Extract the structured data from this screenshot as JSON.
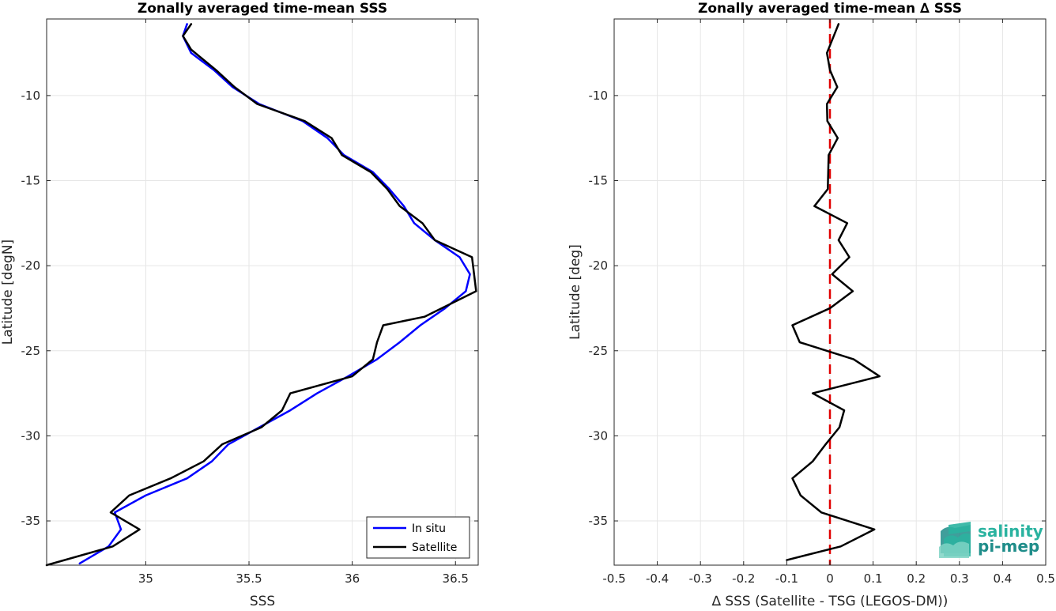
{
  "figure": {
    "background": "#ffffff",
    "grid_color": "#e6e6e6",
    "axis_color": "#262626"
  },
  "logo": {
    "line1": "salinity",
    "line2": "pi-mep",
    "color_primary": "#2ab3a0",
    "color_secondary": "#1f8d8a"
  },
  "chart_data": [
    {
      "type": "line",
      "title": "Zonally averaged time-mean SSS",
      "xlabel": "SSS",
      "ylabel": "Latitude [degN]",
      "xlim": [
        34.52,
        36.61
      ],
      "ylim": [
        -37.6,
        -5.5
      ],
      "xticks": [
        35,
        35.5,
        36,
        36.5
      ],
      "xtick_labels": [
        "35",
        "35.5",
        "36",
        "36.5"
      ],
      "yticks": [
        -10,
        -15,
        -20,
        -25,
        -30,
        -35
      ],
      "ytick_labels": [
        "-10",
        "-15",
        "-20",
        "-25",
        "-30",
        "-35"
      ],
      "grid": true,
      "legend_position": "bottom-right",
      "series": [
        {
          "name": "In situ",
          "color": "#0000ff",
          "points": [
            [
              35.2,
              -5.8
            ],
            [
              35.18,
              -6.5
            ],
            [
              35.22,
              -7.5
            ],
            [
              35.33,
              -8.5
            ],
            [
              35.42,
              -9.5
            ],
            [
              35.55,
              -10.5
            ],
            [
              35.76,
              -11.5
            ],
            [
              35.88,
              -12.5
            ],
            [
              35.96,
              -13.5
            ],
            [
              36.1,
              -14.5
            ],
            [
              36.18,
              -15.5
            ],
            [
              36.25,
              -16.5
            ],
            [
              36.3,
              -17.5
            ],
            [
              36.4,
              -18.5
            ],
            [
              36.52,
              -19.5
            ],
            [
              36.57,
              -20.5
            ],
            [
              36.55,
              -21.5
            ],
            [
              36.45,
              -22.5
            ],
            [
              36.33,
              -23.5
            ],
            [
              36.23,
              -24.5
            ],
            [
              36.12,
              -25.5
            ],
            [
              35.98,
              -26.5
            ],
            [
              35.83,
              -27.5
            ],
            [
              35.7,
              -28.5
            ],
            [
              35.55,
              -29.5
            ],
            [
              35.4,
              -30.5
            ],
            [
              35.32,
              -31.5
            ],
            [
              35.2,
              -32.5
            ],
            [
              35.0,
              -33.5
            ],
            [
              34.85,
              -34.5
            ],
            [
              34.88,
              -35.5
            ],
            [
              34.82,
              -36.5
            ],
            [
              34.68,
              -37.5
            ]
          ]
        },
        {
          "name": "Satellite",
          "color": "#000000",
          "points": [
            [
              35.22,
              -5.8
            ],
            [
              35.18,
              -6.5
            ],
            [
              35.22,
              -7.3
            ],
            [
              35.34,
              -8.5
            ],
            [
              35.43,
              -9.5
            ],
            [
              35.54,
              -10.5
            ],
            [
              35.77,
              -11.5
            ],
            [
              35.9,
              -12.5
            ],
            [
              35.95,
              -13.5
            ],
            [
              36.09,
              -14.5
            ],
            [
              36.17,
              -15.5
            ],
            [
              36.23,
              -16.5
            ],
            [
              36.34,
              -17.5
            ],
            [
              36.4,
              -18.5
            ],
            [
              36.58,
              -19.5
            ],
            [
              36.6,
              -21.5
            ],
            [
              36.35,
              -23.0
            ],
            [
              36.15,
              -23.5
            ],
            [
              36.12,
              -24.5
            ],
            [
              36.1,
              -25.5
            ],
            [
              36.0,
              -26.5
            ],
            [
              35.7,
              -27.5
            ],
            [
              35.66,
              -28.5
            ],
            [
              35.56,
              -29.5
            ],
            [
              35.37,
              -30.5
            ],
            [
              35.28,
              -31.5
            ],
            [
              35.12,
              -32.5
            ],
            [
              34.92,
              -33.5
            ],
            [
              34.83,
              -34.5
            ],
            [
              34.97,
              -35.5
            ],
            [
              34.84,
              -36.5
            ],
            [
              34.52,
              -37.6
            ]
          ]
        }
      ]
    },
    {
      "type": "line",
      "title": "Zonally averaged time-mean ∆ SSS",
      "xlabel": "∆ SSS (Satellite - TSG (LEGOS-DM))",
      "ylabel": "Latitude [deg]",
      "xlim": [
        -0.5,
        0.5
      ],
      "ylim": [
        -37.6,
        -5.5
      ],
      "xticks": [
        -0.5,
        -0.4,
        -0.3,
        -0.2,
        -0.1,
        0,
        0.1,
        0.2,
        0.3,
        0.4,
        0.5
      ],
      "xtick_labels": [
        "-0.5",
        "-0.4",
        "-0.3",
        "-0.2",
        "-0.1",
        "0",
        "0.1",
        "0.2",
        "0.3",
        "0.4",
        "0.5"
      ],
      "yticks": [
        -10,
        -15,
        -20,
        -25,
        -30,
        -35
      ],
      "ytick_labels": [
        "-10",
        "-15",
        "-20",
        "-25",
        "-30",
        "-35"
      ],
      "grid": true,
      "reference_line": {
        "x": 0,
        "color": "#e00000",
        "style": "dashed"
      },
      "series": [
        {
          "color": "#000000",
          "points": [
            [
              0.02,
              -5.8
            ],
            [
              -0.007,
              -7.5
            ],
            [
              0.0,
              -8.5
            ],
            [
              0.017,
              -9.5
            ],
            [
              -0.007,
              -10.5
            ],
            [
              -0.006,
              -11.5
            ],
            [
              0.018,
              -12.5
            ],
            [
              -0.003,
              -13.5
            ],
            [
              -0.005,
              -15.5
            ],
            [
              -0.036,
              -16.5
            ],
            [
              0.04,
              -17.5
            ],
            [
              0.02,
              -18.5
            ],
            [
              0.045,
              -19.5
            ],
            [
              0.005,
              -20.5
            ],
            [
              0.053,
              -21.5
            ],
            [
              0.0,
              -22.5
            ],
            [
              -0.087,
              -23.5
            ],
            [
              -0.07,
              -24.5
            ],
            [
              0.055,
              -25.5
            ],
            [
              0.115,
              -26.5
            ],
            [
              -0.04,
              -27.5
            ],
            [
              0.033,
              -28.5
            ],
            [
              0.022,
              -29.5
            ],
            [
              -0.01,
              -30.5
            ],
            [
              -0.04,
              -31.5
            ],
            [
              -0.087,
              -32.5
            ],
            [
              -0.068,
              -33.5
            ],
            [
              -0.02,
              -34.5
            ],
            [
              0.103,
              -35.5
            ],
            [
              0.025,
              -36.5
            ],
            [
              -0.1,
              -37.3
            ]
          ]
        }
      ]
    }
  ]
}
